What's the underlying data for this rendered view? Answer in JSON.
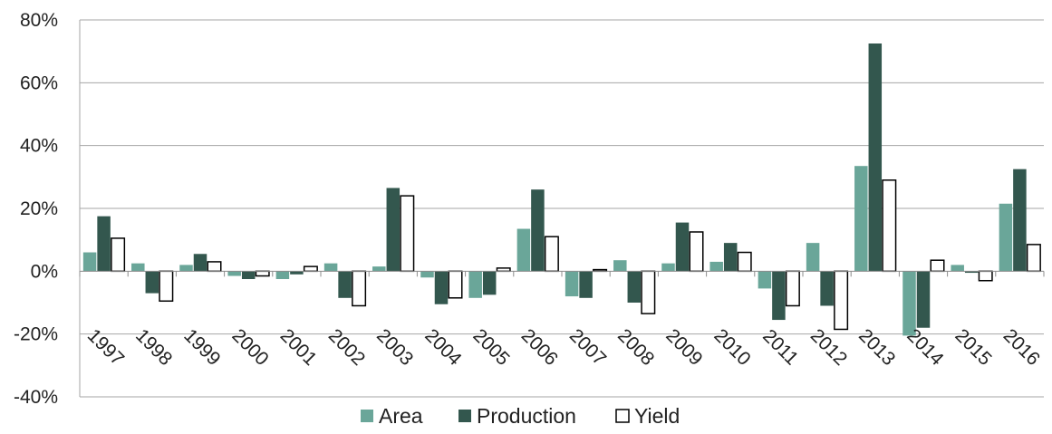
{
  "chart_data": {
    "type": "bar",
    "categories": [
      "1997",
      "1998",
      "1999",
      "2000",
      "2001",
      "2002",
      "2003",
      "2004",
      "2005",
      "2006",
      "2007",
      "2008",
      "2009",
      "2010",
      "2011",
      "2012",
      "2013",
      "2014",
      "2015",
      "2016"
    ],
    "series": [
      {
        "name": "Area",
        "color": "#6aa699",
        "outline": "none",
        "values": [
          6,
          2.5,
          2,
          -1.5,
          -2.5,
          2.5,
          1.5,
          -2,
          -8.5,
          13.5,
          -8,
          3.5,
          2.5,
          3,
          -5.5,
          9,
          33.5,
          -20.5,
          2,
          21.5
        ]
      },
      {
        "name": "Production",
        "color": "#33574e",
        "outline": "none",
        "values": [
          17.5,
          -7,
          5.5,
          -2.5,
          -1,
          -8.5,
          26.5,
          -10.5,
          -7.5,
          26,
          -8.5,
          -10,
          15.5,
          9,
          -15.5,
          -11,
          72.5,
          -18,
          -0.5,
          32.5
        ]
      },
      {
        "name": "Yield",
        "color": "#ffffff",
        "outline": "#000000",
        "values": [
          10.5,
          -9.5,
          3,
          -1.5,
          1.5,
          -11,
          24,
          -8.5,
          1,
          11,
          0.5,
          -13.5,
          12.5,
          6,
          -11,
          -18.5,
          29,
          3.5,
          -3,
          8.5
        ]
      }
    ],
    "y_ticks": [
      "-40%",
      "-20%",
      "0%",
      "20%",
      "40%",
      "60%",
      "80%"
    ],
    "ylim": [
      -40,
      80
    ],
    "title": "",
    "xlabel": "",
    "ylabel": "",
    "grid": "horizontal",
    "legend_position": "bottom"
  }
}
